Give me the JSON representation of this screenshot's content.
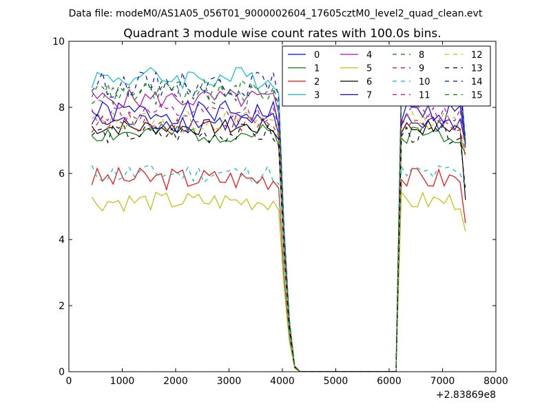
{
  "chart_data": {
    "type": "line",
    "supertitle": "Data file: modeM0/AS1A05_056T01_9000002604_17605cztM0_level2_quad_clean.evt",
    "title": "Quadrant 3 module wise count rates with 100.0s bins.",
    "xlabel": "",
    "ylabel": "",
    "x_offset_label": "+2.83869e8",
    "xlim": [
      0,
      8000
    ],
    "ylim": [
      0,
      10
    ],
    "xticks": [
      0,
      1000,
      2000,
      3000,
      4000,
      5000,
      6000,
      7000,
      8000
    ],
    "yticks": [
      0,
      2,
      4,
      6,
      8,
      10
    ],
    "x_segments": [
      {
        "start": 430,
        "step": 100,
        "count": 37
      },
      {
        "start": 4130,
        "step": 100,
        "count": 21
      },
      {
        "start": 6230,
        "step": 100,
        "count": 13
      }
    ],
    "series": [
      {
        "name": "0",
        "color": "#0000ff",
        "dash": false,
        "level": 7.85,
        "amp": 0.35,
        "end": 6.9,
        "seed": 1
      },
      {
        "name": "1",
        "color": "#008000",
        "dash": false,
        "level": 7.2,
        "amp": 0.3,
        "end": 6.6,
        "seed": 2
      },
      {
        "name": "2",
        "color": "#ff0000",
        "dash": false,
        "level": 5.85,
        "amp": 0.35,
        "end": 4.5,
        "seed": 3
      },
      {
        "name": "3",
        "color": "#00bfbf",
        "dash": false,
        "level": 8.9,
        "amp": 0.35,
        "end": 7.0,
        "seed": 4
      },
      {
        "name": "4",
        "color": "#bf00bf",
        "dash": false,
        "level": 8.25,
        "amp": 0.3,
        "end": 6.8,
        "seed": 5
      },
      {
        "name": "5",
        "color": "#bfbf00",
        "dash": false,
        "level": 5.15,
        "amp": 0.3,
        "end": 4.25,
        "seed": 6
      },
      {
        "name": "6",
        "color": "#000000",
        "dash": false,
        "level": 7.4,
        "amp": 0.25,
        "end": 5.2,
        "seed": 7
      },
      {
        "name": "7",
        "color": "#0000ff",
        "dash": false,
        "level": 7.55,
        "amp": 0.3,
        "end": 6.9,
        "seed": 8
      },
      {
        "name": "8",
        "color": "#008000",
        "dash": true,
        "level": 8.5,
        "amp": 0.35,
        "end": 6.9,
        "seed": 9
      },
      {
        "name": "9",
        "color": "#ff0000",
        "dash": true,
        "level": 7.5,
        "amp": 0.3,
        "end": 6.5,
        "seed": 10
      },
      {
        "name": "10",
        "color": "#00bfbf",
        "dash": true,
        "level": 6.0,
        "amp": 0.3,
        "end": 5.6,
        "seed": 11
      },
      {
        "name": "11",
        "color": "#bf00bf",
        "dash": true,
        "level": 7.8,
        "amp": 0.3,
        "end": 6.7,
        "seed": 12
      },
      {
        "name": "12",
        "color": "#bfbf00",
        "dash": true,
        "level": 7.6,
        "amp": 0.3,
        "end": 6.6,
        "seed": 13
      },
      {
        "name": "13",
        "color": "#000000",
        "dash": true,
        "level": 7.2,
        "amp": 0.3,
        "end": 5.5,
        "seed": 14
      },
      {
        "name": "14",
        "color": "#0000ff",
        "dash": true,
        "level": 8.7,
        "amp": 0.4,
        "end": 7.0,
        "seed": 15
      },
      {
        "name": "15",
        "color": "#008000",
        "dash": true,
        "level": 8.4,
        "amp": 0.35,
        "end": 6.8,
        "seed": 16
      }
    ],
    "legend_position": "top-right",
    "legend_columns": 4,
    "grid": false
  }
}
